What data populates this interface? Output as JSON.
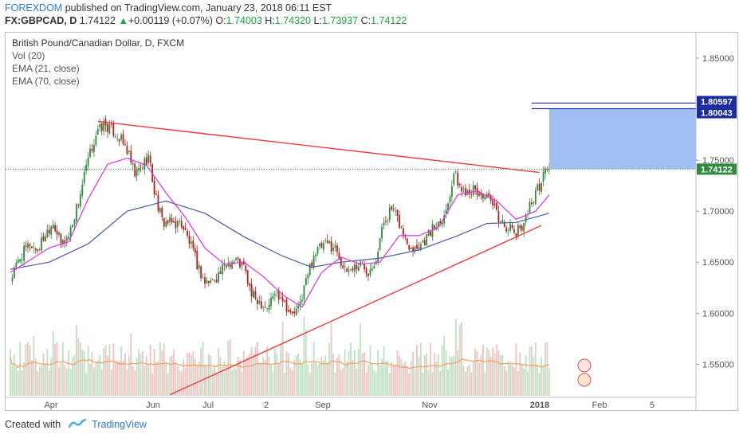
{
  "header": {
    "brand": "FOREXDOM",
    "published_text": " published on TradingView.com, January 23, 2018 06:11 EST",
    "symbol": "FX:GBPCAD, D",
    "last": "1.74122",
    "change_arrow": "▲",
    "change": "+0.00119 (+0.07%)",
    "o_label": "O:",
    "o_value": "1.74003",
    "h_label": "H:",
    "h_value": "1.74320",
    "l_label": "L:",
    "l_value": "1.73937",
    "c_label": "C:",
    "c_value": "1.74122"
  },
  "legend": {
    "title": "British Pound/Canadian Dollar, D, FXCM",
    "vol": "Vol (20)",
    "ema21": "EMA (21, close)",
    "ema70": "EMA (70, close)"
  },
  "footer": {
    "created_with": "Created with",
    "logo": "TradingView"
  },
  "colors": {
    "up": "#2e8b3e",
    "down": "#b21f1f",
    "ema21": "#e62ee0",
    "ema70": "#4a5aa8",
    "trendline": "#f03c3c",
    "target_zone": "#8fb3ee",
    "target_lines": "#1a2aa0",
    "vol_up": "#bfe0c4",
    "vol_down": "#f2c2c2",
    "vol_ma": "#f0a060",
    "brand": "#2e7bcf"
  },
  "chart_data": {
    "type": "candlestick",
    "title": "British Pound/Canadian Dollar, D, FXCM",
    "ylim": [
      1.505,
      1.875
    ],
    "y_ticks": [
      "1.85000",
      "1.80000",
      "1.75000",
      "1.70000",
      "1.65000",
      "1.60000",
      "1.55000"
    ],
    "x_ticks": [
      "Apr",
      "Jun",
      "Jul",
      "2",
      "Sep",
      "Nov",
      "2018",
      "Feb",
      "5"
    ],
    "price_tags": [
      {
        "label": "1.80597",
        "value": 1.80597
      },
      {
        "label": "1.80043",
        "value": 1.80043
      },
      {
        "label": "1.74122",
        "value": 1.74122
      }
    ],
    "close_path": [
      [
        0,
        1.632
      ],
      [
        5,
        1.655
      ],
      [
        10,
        1.668
      ],
      [
        14,
        1.662
      ],
      [
        18,
        1.678
      ],
      [
        22,
        1.69
      ],
      [
        26,
        1.668
      ],
      [
        30,
        1.676
      ],
      [
        35,
        1.71
      ],
      [
        40,
        1.75
      ],
      [
        44,
        1.775
      ],
      [
        48,
        1.785
      ],
      [
        52,
        1.78
      ],
      [
        56,
        1.772
      ],
      [
        60,
        1.76
      ],
      [
        64,
        1.735
      ],
      [
        68,
        1.745
      ],
      [
        71,
        1.755
      ],
      [
        74,
        1.72
      ],
      [
        78,
        1.69
      ],
      [
        83,
        1.688
      ],
      [
        88,
        1.688
      ],
      [
        92,
        1.67
      ],
      [
        96,
        1.648
      ],
      [
        100,
        1.63
      ],
      [
        104,
        1.632
      ],
      [
        108,
        1.64
      ],
      [
        112,
        1.65
      ],
      [
        116,
        1.652
      ],
      [
        120,
        1.645
      ],
      [
        124,
        1.618
      ],
      [
        128,
        1.612
      ],
      [
        132,
        1.606
      ],
      [
        136,
        1.62
      ],
      [
        140,
        1.616
      ],
      [
        144,
        1.598
      ],
      [
        148,
        1.603
      ],
      [
        152,
        1.632
      ],
      [
        156,
        1.658
      ],
      [
        160,
        1.665
      ],
      [
        164,
        1.668
      ],
      [
        168,
        1.662
      ],
      [
        172,
        1.64
      ],
      [
        176,
        1.645
      ],
      [
        180,
        1.648
      ],
      [
        184,
        1.642
      ],
      [
        188,
        1.655
      ],
      [
        192,
        1.69
      ],
      [
        196,
        1.702
      ],
      [
        200,
        1.688
      ],
      [
        204,
        1.668
      ],
      [
        208,
        1.665
      ],
      [
        212,
        1.67
      ],
      [
        216,
        1.68
      ],
      [
        220,
        1.69
      ],
      [
        224,
        1.7
      ],
      [
        228,
        1.738
      ],
      [
        232,
        1.72
      ],
      [
        236,
        1.722
      ],
      [
        240,
        1.718
      ],
      [
        244,
        1.715
      ],
      [
        248,
        1.705
      ],
      [
        252,
        1.69
      ],
      [
        256,
        1.684
      ],
      [
        260,
        1.678
      ],
      [
        264,
        1.69
      ],
      [
        268,
        1.71
      ],
      [
        272,
        1.725
      ],
      [
        275,
        1.741
      ]
    ],
    "ema21": [
      [
        0,
        1.64
      ],
      [
        10,
        1.652
      ],
      [
        20,
        1.664
      ],
      [
        30,
        1.67
      ],
      [
        40,
        1.712
      ],
      [
        50,
        1.746
      ],
      [
        60,
        1.752
      ],
      [
        70,
        1.745
      ],
      [
        80,
        1.718
      ],
      [
        90,
        1.694
      ],
      [
        100,
        1.664
      ],
      [
        110,
        1.648
      ],
      [
        120,
        1.65
      ],
      [
        130,
        1.636
      ],
      [
        140,
        1.618
      ],
      [
        150,
        1.606
      ],
      [
        160,
        1.64
      ],
      [
        170,
        1.655
      ],
      [
        180,
        1.648
      ],
      [
        190,
        1.65
      ],
      [
        200,
        1.676
      ],
      [
        210,
        1.676
      ],
      [
        220,
        1.684
      ],
      [
        230,
        1.716
      ],
      [
        240,
        1.72
      ],
      [
        250,
        1.71
      ],
      [
        260,
        1.692
      ],
      [
        270,
        1.7
      ],
      [
        277,
        1.716
      ]
    ],
    "ema70": [
      [
        0,
        1.643
      ],
      [
        20,
        1.65
      ],
      [
        40,
        1.668
      ],
      [
        60,
        1.7
      ],
      [
        80,
        1.71
      ],
      [
        100,
        1.698
      ],
      [
        120,
        1.675
      ],
      [
        140,
        1.656
      ],
      [
        155,
        1.645
      ],
      [
        170,
        1.65
      ],
      [
        190,
        1.654
      ],
      [
        210,
        1.662
      ],
      [
        230,
        1.676
      ],
      [
        245,
        1.688
      ],
      [
        260,
        1.689
      ],
      [
        277,
        1.698
      ]
    ],
    "resistance_line": {
      "start": [
        45,
        1.788
      ],
      "end": [
        272,
        1.738
      ]
    },
    "support_line": {
      "start": [
        82,
        1.52
      ],
      "end": [
        273,
        1.686
      ]
    },
    "target_zone": {
      "from_bar": 277,
      "to_value": 1.80043,
      "from_value": 1.74122
    }
  }
}
